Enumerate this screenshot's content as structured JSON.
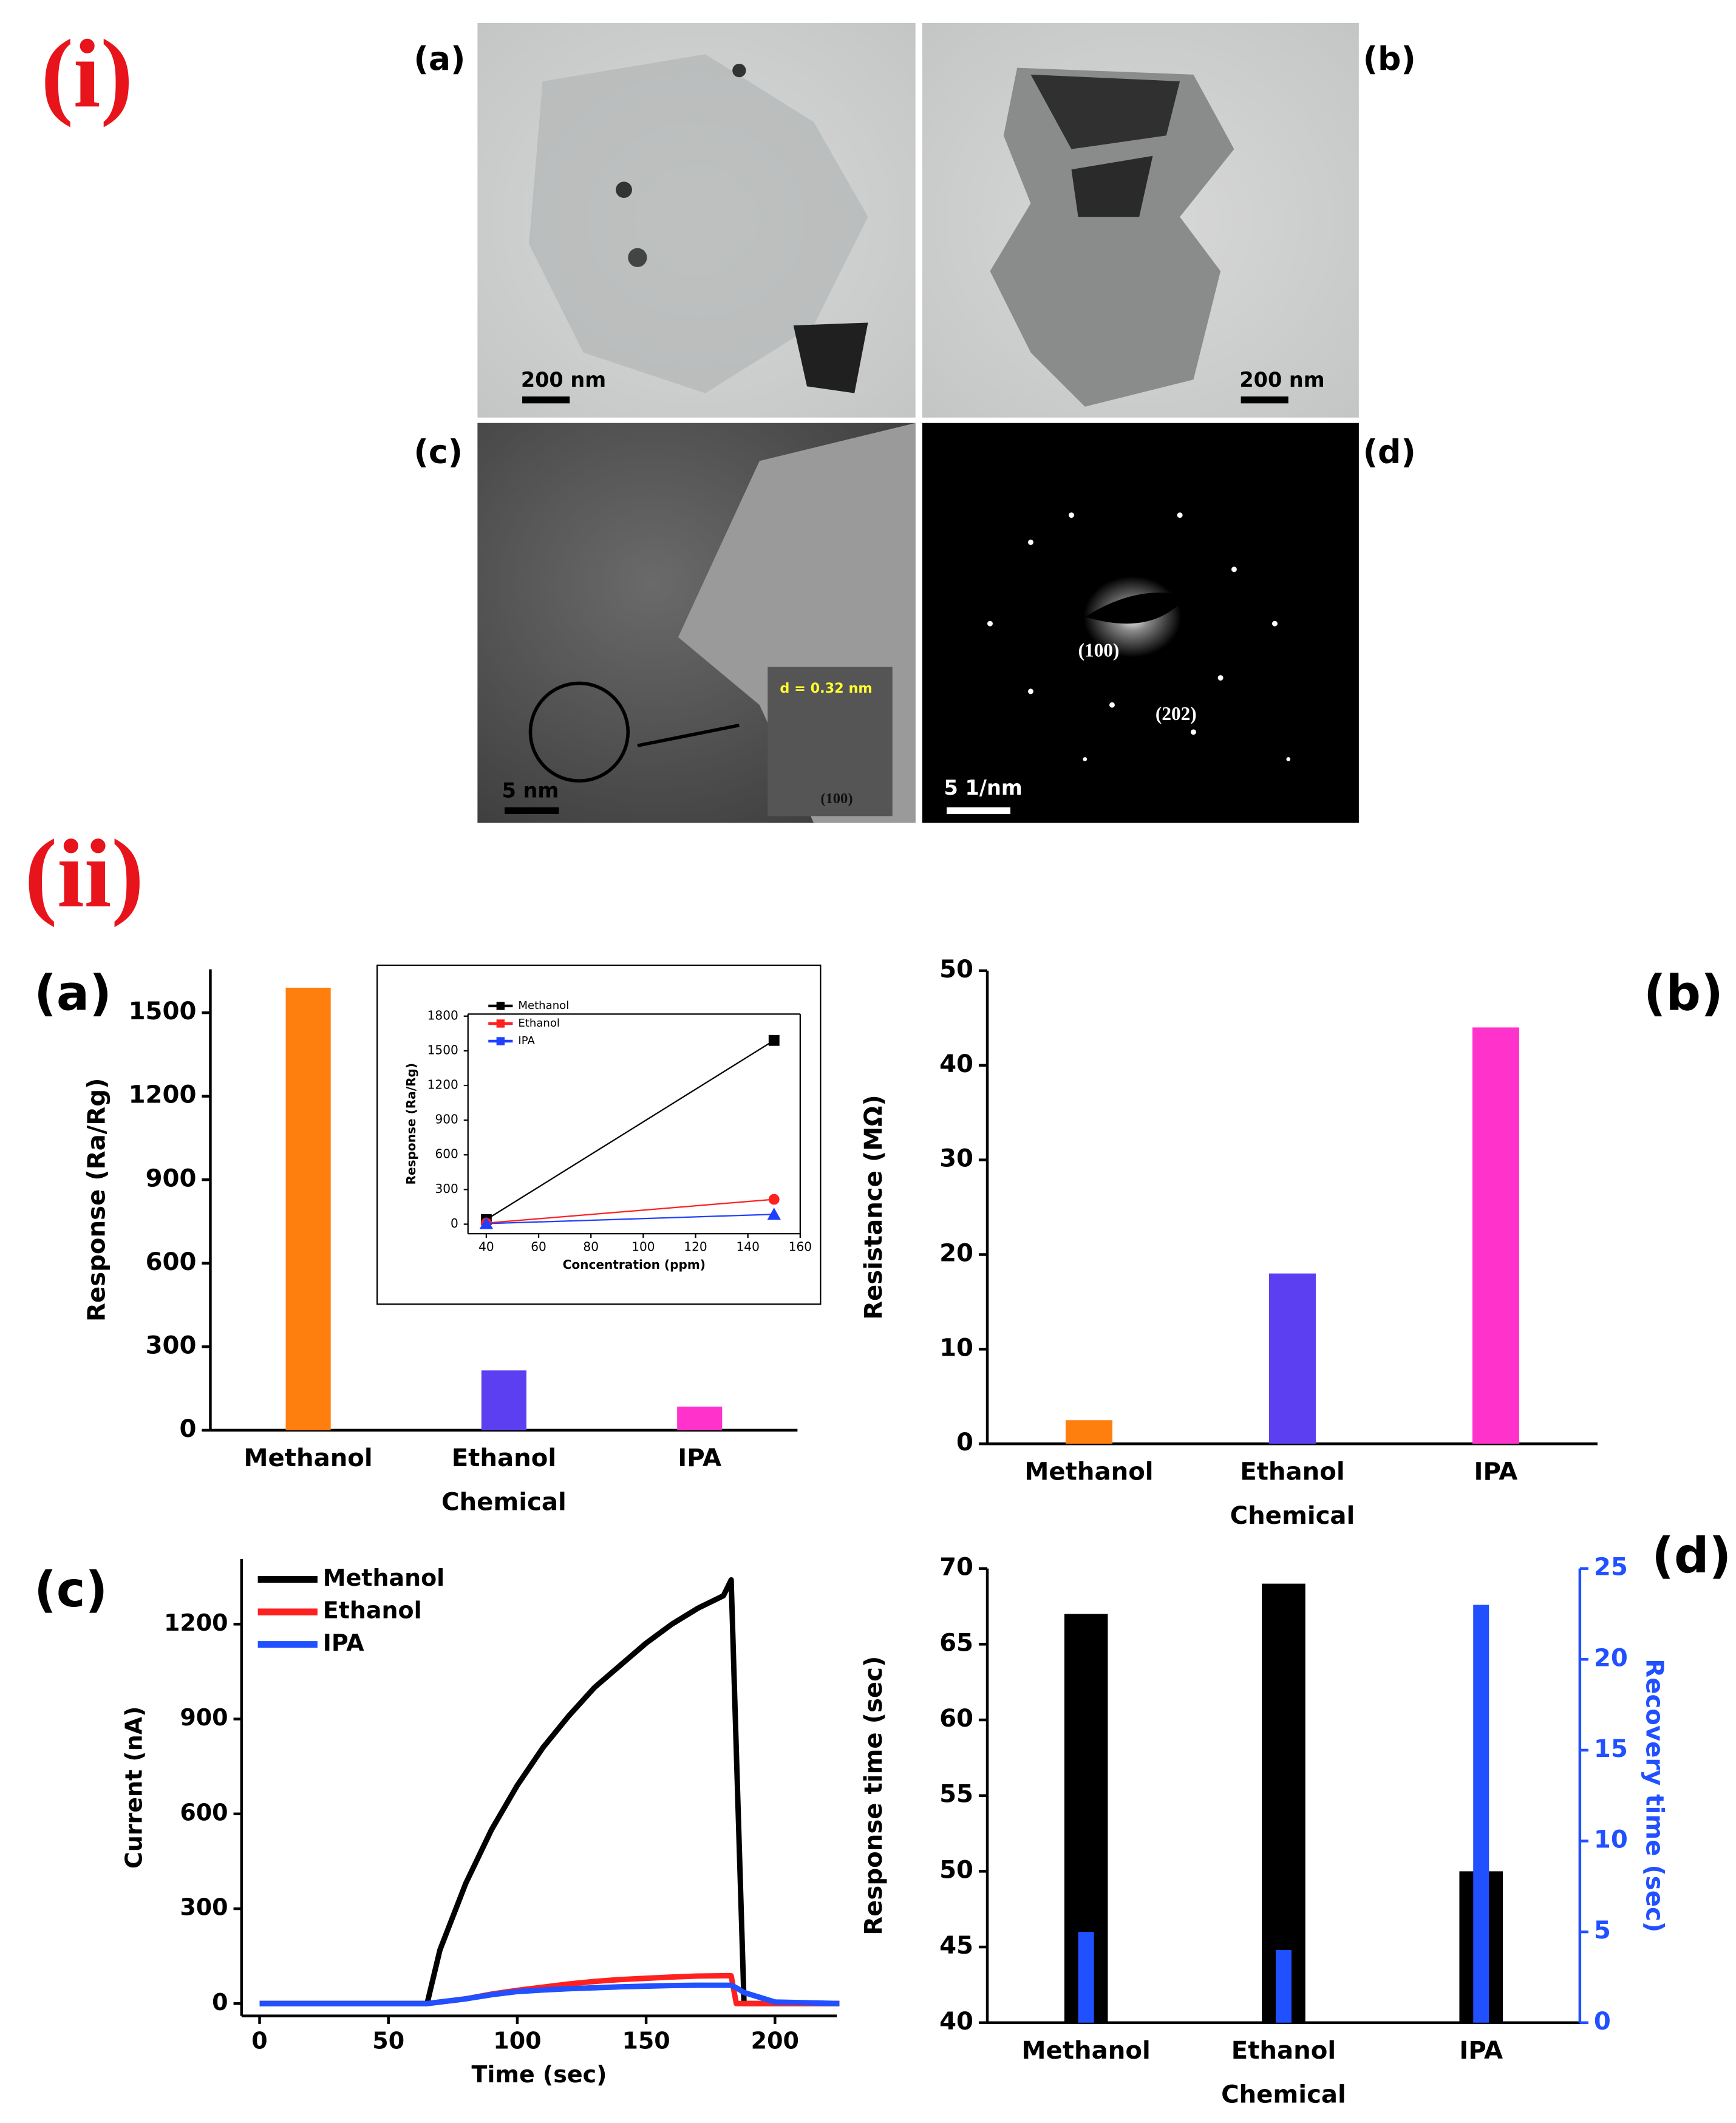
{
  "figure_labels": {
    "part_i": "(i)",
    "part_ii": "(ii)"
  },
  "micrographs": [
    {
      "label": "(a)",
      "scale_bar": "200 nm"
    },
    {
      "label": "(b)",
      "scale_bar": "200 nm"
    },
    {
      "label": "(c)",
      "scale_bar": "5 nm",
      "annotations": [
        "d = 0.32 nm",
        "(100)"
      ]
    },
    {
      "label": "(d)",
      "scale_bar": "5 1/nm",
      "annotations": [
        "(100)",
        "(202)"
      ]
    }
  ],
  "chart_data": [
    {
      "type": "bar",
      "panel_label": "(a)",
      "x_label": "Chemical",
      "y_label": "Response (Ra/Rg)",
      "categories": [
        "Methanol",
        "Ethanol",
        "IPA"
      ],
      "values": [
        1590,
        215,
        85
      ],
      "colors": [
        "#ff7f0e",
        "#5b3ff0",
        "#ff33cc"
      ],
      "ylim": [
        0,
        1656
      ],
      "yticks": [
        0,
        300,
        600,
        900,
        1200,
        1500
      ]
    },
    {
      "type": "line",
      "x_label": "Concentration (ppm)",
      "y_label": "Response (Ra/Rg)",
      "x": [
        40,
        150
      ],
      "series": [
        {
          "name": "Methanol",
          "color": "#000000",
          "marker": "square",
          "values": [
            40,
            1590
          ]
        },
        {
          "name": "Ethanol",
          "color": "#ff2020",
          "marker": "circle",
          "values": [
            10,
            215
          ]
        },
        {
          "name": "IPA",
          "color": "#2040ff",
          "marker": "triangle",
          "values": [
            5,
            85
          ]
        }
      ],
      "xlim": [
        33,
        160
      ],
      "xticks": [
        40,
        60,
        80,
        100,
        120,
        140,
        160
      ],
      "ylim": [
        -82,
        1818
      ],
      "yticks": [
        0,
        300,
        600,
        900,
        1200,
        1500,
        1800
      ]
    },
    {
      "type": "bar",
      "panel_label": "(b)",
      "x_label": "Chemical",
      "y_label": "Resistance (MΩ)",
      "categories": [
        "Methanol",
        "Ethanol",
        "IPA"
      ],
      "values": [
        2.5,
        18,
        44
      ],
      "colors": [
        "#ff7f0e",
        "#5b3ff0",
        "#ff33cc"
      ],
      "ylim": [
        0,
        50
      ],
      "yticks": [
        0,
        10,
        20,
        30,
        40,
        50
      ]
    },
    {
      "type": "line",
      "panel_label": "(c)",
      "x_label": "Time (sec)",
      "y_label": "Current (nA)",
      "x": [
        0,
        65,
        70,
        80,
        90,
        100,
        110,
        120,
        130,
        140,
        150,
        160,
        170,
        180,
        183,
        185,
        188,
        200,
        225
      ],
      "series": [
        {
          "name": "Methanol",
          "color": "#000000",
          "values": [
            0,
            0,
            170,
            380,
            550,
            690,
            810,
            910,
            1000,
            1070,
            1140,
            1200,
            1250,
            1290,
            1340,
            800,
            0,
            0,
            0
          ]
        },
        {
          "name": "Ethanol",
          "color": "#ff2020",
          "values": [
            0,
            0,
            5,
            15,
            30,
            42,
            52,
            62,
            70,
            76,
            80,
            84,
            87,
            88,
            88,
            0,
            0,
            0,
            0
          ]
        },
        {
          "name": "IPA",
          "color": "#2050ff",
          "values": [
            0,
            0,
            5,
            15,
            28,
            38,
            43,
            47,
            50,
            53,
            55,
            57,
            58,
            58,
            58,
            50,
            35,
            5,
            0
          ]
        }
      ],
      "xlim": [
        -7,
        224
      ],
      "xticks": [
        0,
        50,
        100,
        150,
        200
      ],
      "ylim": [
        -39,
        1406
      ],
      "yticks": [
        0,
        300,
        600,
        900,
        1200
      ]
    },
    {
      "type": "bar",
      "panel_label": "(d)",
      "x_label": "Chemical",
      "y_label": "Response time (sec)",
      "y2_label": "Recovery time (sec)",
      "categories": [
        "Methanol",
        "Ethanol",
        "IPA"
      ],
      "series": [
        {
          "name": "Response time",
          "color": "#000000",
          "values": [
            67,
            69,
            50
          ]
        },
        {
          "name": "Recovery time",
          "color": "#2050ff",
          "axis": "y2",
          "values": [
            5,
            4,
            23
          ]
        }
      ],
      "ylim": [
        40,
        70
      ],
      "yticks": [
        40,
        45,
        50,
        55,
        60,
        65,
        70
      ],
      "y2lim": [
        0,
        25
      ],
      "y2ticks": [
        0,
        5,
        10,
        15,
        20,
        25
      ]
    }
  ]
}
